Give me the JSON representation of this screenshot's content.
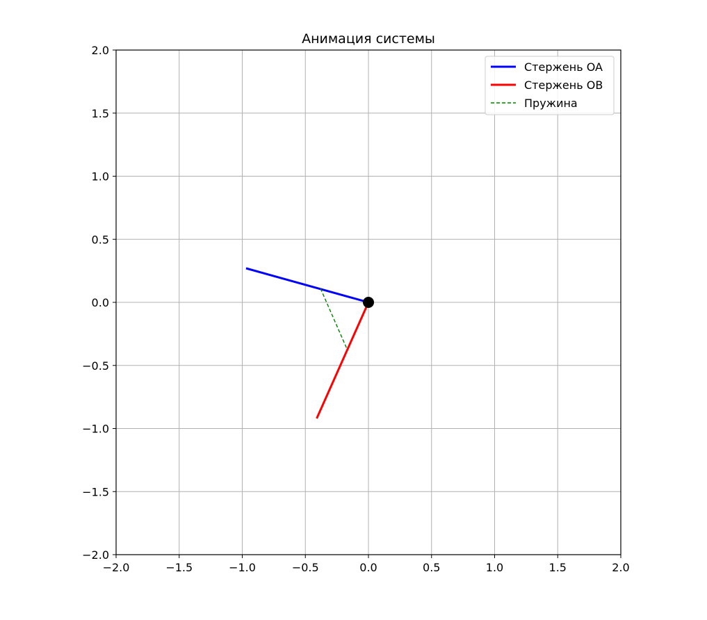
{
  "chart_data": {
    "type": "line",
    "title": "Анимация системы",
    "xlabel": "",
    "ylabel": "",
    "xlim": [
      -2.0,
      2.0
    ],
    "ylim": [
      -2.0,
      2.0
    ],
    "grid": true,
    "legend_position": "top-right",
    "x_ticks": [
      -2.0,
      -1.5,
      -1.0,
      -0.5,
      0.0,
      0.5,
      1.0,
      1.5,
      2.0
    ],
    "x_tick_labels": [
      "−2.0",
      "−1.5",
      "−1.0",
      "−0.5",
      "0.0",
      "0.5",
      "1.0",
      "1.5",
      "2.0"
    ],
    "y_ticks": [
      -2.0,
      -1.5,
      -1.0,
      -0.5,
      0.0,
      0.5,
      1.0,
      1.5,
      2.0
    ],
    "y_tick_labels": [
      "−2.0",
      "−1.5",
      "−1.0",
      "−0.5",
      "0.0",
      "0.5",
      "1.0",
      "1.5",
      "2.0"
    ],
    "series": [
      {
        "name": "Стержень OA",
        "color": "#0000ff",
        "style": "solid",
        "x": [
          0.0,
          -0.97
        ],
        "y": [
          0.0,
          0.27
        ]
      },
      {
        "name": "Стержень OB",
        "color": "#ff0000",
        "style": "solid",
        "x": [
          0.0,
          -0.41
        ],
        "y": [
          0.0,
          -0.92
        ]
      },
      {
        "name": "Пружина",
        "color": "#008000",
        "style": "dashed",
        "x": [
          -0.38,
          -0.17
        ],
        "y": [
          0.11,
          -0.37
        ]
      }
    ],
    "pivot": {
      "x": 0.0,
      "y": 0.0,
      "color": "#000000"
    }
  }
}
